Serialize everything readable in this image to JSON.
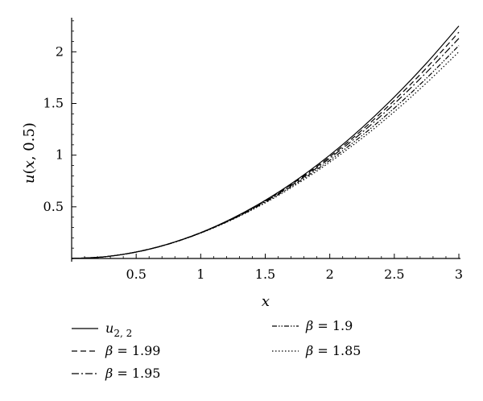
{
  "chart_data": {
    "type": "line",
    "xlabel_var": "x",
    "ylabel_parts": {
      "fn": "u",
      "open": "(",
      "var": "x",
      "sep": ", 0.5",
      "close": ")"
    },
    "xlim": [
      0,
      3
    ],
    "ylim": [
      0,
      2.3
    ],
    "x_ticks": [
      0.5,
      1,
      1.5,
      2,
      2.5,
      3
    ],
    "x_tick_labels": [
      "0.5",
      "1",
      "1.5",
      "2",
      "2.5",
      "3"
    ],
    "y_ticks": [
      0.5,
      1,
      1.5,
      2
    ],
    "y_tick_labels": [
      "0.5",
      "1",
      "1.5",
      "2"
    ],
    "grid": false,
    "legend_position": "bottom",
    "x": [
      0,
      0.25,
      0.5,
      0.75,
      1,
      1.25,
      1.5,
      1.75,
      2,
      2.25,
      2.5,
      2.75,
      3
    ],
    "series": [
      {
        "name": "u2, 2",
        "dash": "solid",
        "legend_main": "u",
        "legend_sub": "2, 2",
        "values": [
          0,
          0.016,
          0.063,
          0.141,
          0.25,
          0.391,
          0.563,
          0.766,
          1.0,
          1.266,
          1.563,
          1.891,
          2.25
        ]
      },
      {
        "name": "β = 1.99",
        "dash": "dashed",
        "legend_main": "β = 1.99",
        "legend_sub": "",
        "values": [
          0,
          0.016,
          0.063,
          0.141,
          0.25,
          0.389,
          0.558,
          0.757,
          0.985,
          1.243,
          1.53,
          1.845,
          2.19
        ]
      },
      {
        "name": "β = 1.95",
        "dash": "dashdot",
        "legend_main": "β = 1.95",
        "legend_sub": "",
        "values": [
          0,
          0.016,
          0.062,
          0.14,
          0.248,
          0.385,
          0.552,
          0.747,
          0.97,
          1.22,
          1.498,
          1.802,
          2.13
        ]
      },
      {
        "name": "β = 1.9",
        "dash": "dashdotdot",
        "legend_main": "β = 1.9",
        "legend_sub": "",
        "values": [
          0,
          0.016,
          0.062,
          0.139,
          0.247,
          0.382,
          0.545,
          0.735,
          0.95,
          1.19,
          1.455,
          1.745,
          2.06
        ]
      },
      {
        "name": "β = 1.85",
        "dash": "dotted",
        "legend_main": "β = 1.85",
        "legend_sub": "",
        "values": [
          0,
          0.016,
          0.062,
          0.139,
          0.246,
          0.379,
          0.538,
          0.723,
          0.932,
          1.164,
          1.42,
          1.7,
          2.0
        ]
      }
    ]
  }
}
